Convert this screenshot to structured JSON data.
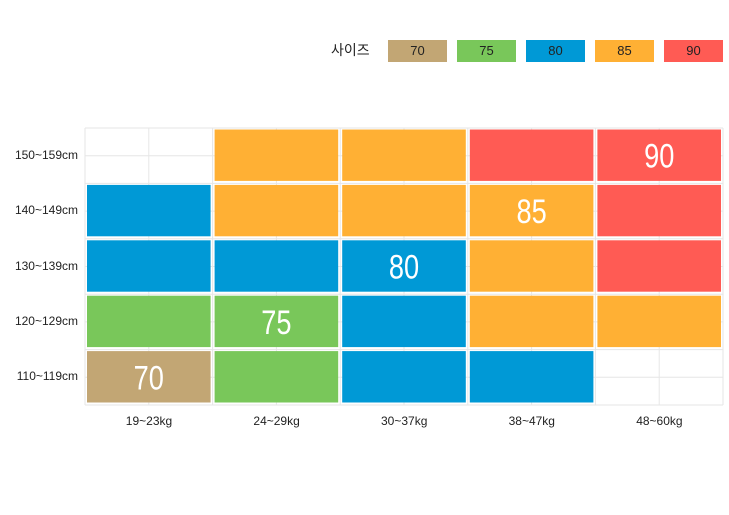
{
  "chart_data": {
    "type": "heatmap",
    "legend_title": "사이즈",
    "legend_position": "top-right",
    "legend": [
      {
        "label": "70",
        "color": "#c2a674"
      },
      {
        "label": "75",
        "color": "#79c75a"
      },
      {
        "label": "80",
        "color": "#0099d6"
      },
      {
        "label": "85",
        "color": "#ffb034"
      },
      {
        "label": "90",
        "color": "#ff5b54"
      }
    ],
    "x_categories": [
      "19~23kg",
      "24~29kg",
      "30~37kg",
      "38~47kg",
      "48~60kg"
    ],
    "y_categories": [
      "150~159cm",
      "140~149cm",
      "130~139cm",
      "120~129cm",
      "110~119cm"
    ],
    "cells": [
      [
        null,
        "85",
        "85",
        "90",
        "90"
      ],
      [
        "80",
        "85",
        "85",
        "85",
        "90"
      ],
      [
        "80",
        "80",
        "80",
        "85",
        "90"
      ],
      [
        "75",
        "75",
        "80",
        "85",
        "85"
      ],
      [
        "70",
        "75",
        "80",
        "80",
        null
      ]
    ],
    "labels": [
      {
        "row": 0,
        "col": 4,
        "text": "90"
      },
      {
        "row": 1,
        "col": 3,
        "text": "85"
      },
      {
        "row": 2,
        "col": 2,
        "text": "80"
      },
      {
        "row": 3,
        "col": 1,
        "text": "75"
      },
      {
        "row": 4,
        "col": 0,
        "text": "70"
      }
    ],
    "grid": true
  }
}
